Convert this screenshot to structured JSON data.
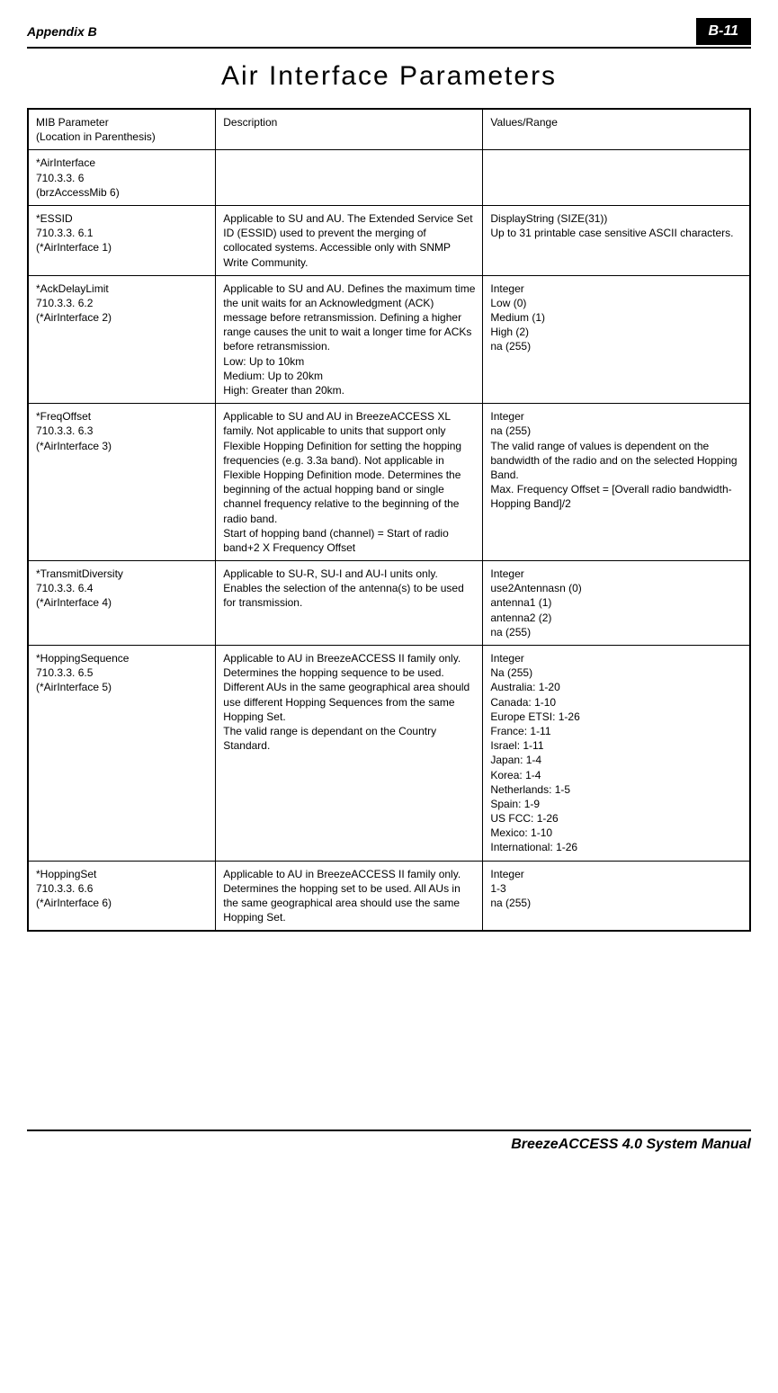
{
  "header": {
    "appendix_label": "Appendix B",
    "page_number": "B-11"
  },
  "title": "Air Interface Parameters",
  "table": {
    "columns": {
      "c1": "MIB Parameter\n(Location in Parenthesis)",
      "c2": "Description",
      "c3": "Values/Range"
    },
    "rows": [
      {
        "c1": "*AirInterface\n710.3.3. 6\n(brzAccessMib 6)",
        "c2": "",
        "c3": ""
      },
      {
        "c1": "*ESSID\n710.3.3. 6.1\n(*AirInterface 1)",
        "c2": "Applicable to SU and AU. The Extended Service Set ID (ESSID) used to prevent the merging of collocated systems. Accessible only with SNMP Write Community.",
        "c3": "DisplayString (SIZE(31))\nUp to 31 printable case sensitive ASCII characters."
      },
      {
        "c1": "*AckDelayLimit\n710.3.3. 6.2\n(*AirInterface 2)",
        "c2": "Applicable to SU and AU. Defines the maximum time the unit waits for an Acknowledgment (ACK) message before retransmission. Defining a higher range causes the unit to wait a longer time for ACKs before retransmission.\nLow:  Up to 10km\nMedium: Up to 20km\nHigh: Greater than 20km.",
        "c3": "Integer\nLow (0)\nMedium (1)\nHigh (2)\nna (255)"
      },
      {
        "c1": "*FreqOffset\n710.3.3. 6.3\n(*AirInterface 3)",
        "c2": "Applicable to SU and AU in BreezeACCESS XL family. Not applicable to units that support only Flexible Hopping Definition for setting the hopping frequencies (e.g. 3.3a band).  Not applicable in Flexible Hopping Definition mode. Determines the beginning of the actual hopping band or single channel frequency relative to the beginning of the radio band.\nStart of hopping band (channel) = Start of radio band+2 X Frequency Offset",
        "c3": "Integer\nna (255)\nThe valid range of values is dependent on the bandwidth of the radio and on the selected Hopping Band.\nMax. Frequency Offset = [Overall radio bandwidth-Hopping Band]/2"
      },
      {
        "c1": "*TransmitDiversity\n710.3.3. 6.4\n(*AirInterface 4)",
        "c2": "Applicable to SU-R, SU-I and AU-I units only.\nEnables the selection of the antenna(s) to be used for transmission.",
        "c3": "Integer\nuse2Antennasn (0)\nantenna1 (1)\nantenna2 (2)\nna (255)"
      },
      {
        "c1": "*HoppingSequence\n710.3.3. 6.5\n(*AirInterface 5)",
        "c2": "Applicable to AU in BreezeACCESS II family only. Determines the hopping sequence to be used. Different AUs in the same geographical area should use different Hopping Sequences from the same Hopping Set.\nThe valid range is dependant on the Country Standard.",
        "c3": "Integer\nNa (255)\nAustralia: 1-20\nCanada: 1-10\nEurope ETSI: 1-26\nFrance: 1-11\nIsrael: 1-11\nJapan: 1-4\nKorea: 1-4\nNetherlands: 1-5\nSpain: 1-9\nUS FCC: 1-26\nMexico: 1-10\nInternational: 1-26"
      },
      {
        "c1": "*HoppingSet\n710.3.3. 6.6\n(*AirInterface 6)",
        "c2": "Applicable to AU in BreezeACCESS II family only. Determines the hopping set to be used. All AUs in the same geographical area should use the same Hopping Set.",
        "c3": "Integer\n1-3\nna (255)"
      }
    ]
  },
  "footer": {
    "manual_title": "BreezeACCESS 4.0 System Manual"
  }
}
